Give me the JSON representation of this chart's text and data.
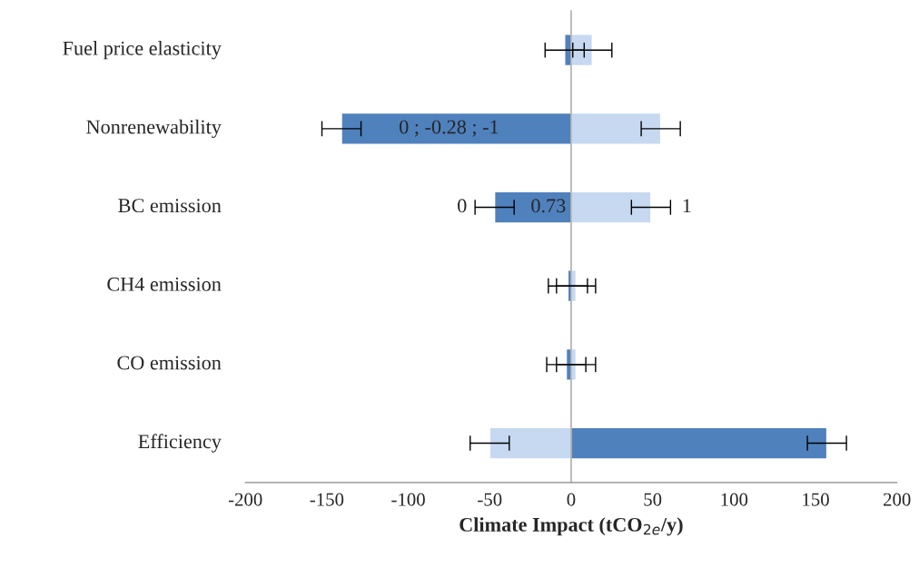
{
  "chart_data": {
    "type": "bar",
    "orientation": "horizontal",
    "xlabel": "Climate Impact (tCO$_{2e}$/y)",
    "categories": [
      "Fuel price elasticity",
      "Nonrenewability",
      "BC emission",
      "CH4 emission",
      "CO emission",
      "Efficiency"
    ],
    "series": [
      {
        "color": "#c6d9f0",
        "values": [
          13,
          55,
          49,
          3,
          3,
          -50
        ],
        "errors": [
          12,
          12,
          12,
          12,
          12,
          12
        ]
      },
      {
        "color": "#4f81bd",
        "values": [
          -4,
          -141,
          -47,
          -2,
          -3,
          157
        ],
        "errors": [
          12,
          12,
          12,
          12,
          12,
          12
        ]
      }
    ],
    "xlim": [
      -200,
      200
    ],
    "xticks": [
      -200,
      -150,
      -100,
      -50,
      0,
      50,
      100,
      150,
      200
    ],
    "stacked": true,
    "annotations": [
      "0 ; -0.28 ; -1",
      "0",
      "0.73",
      "1"
    ]
  }
}
